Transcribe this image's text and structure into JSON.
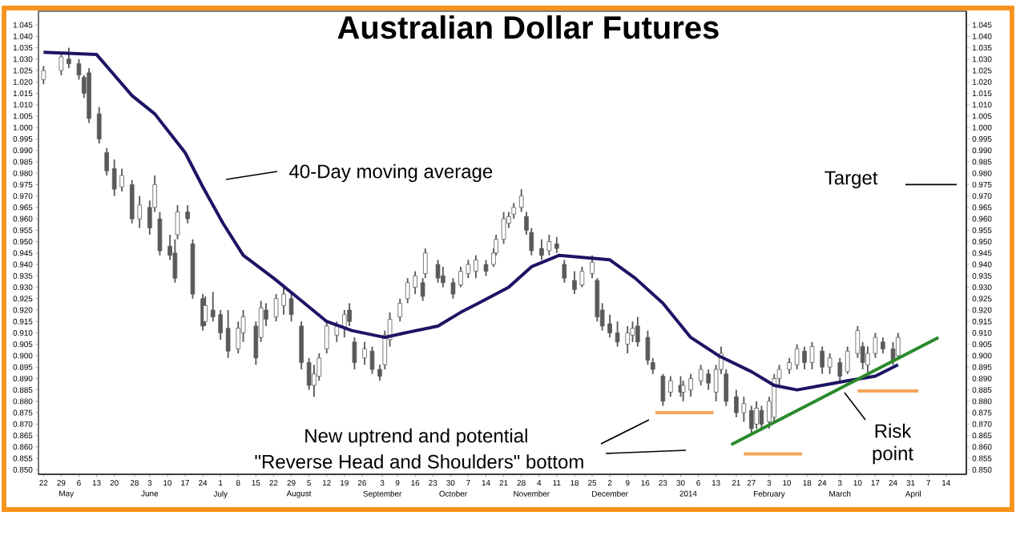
{
  "chart_data": {
    "type": "candlestick",
    "title": "Australian Dollar Futures",
    "color": "#5a5a5a",
    "x": [
      "2013-04-22",
      "2013-04-29",
      "2013-05-02",
      "2013-05-06",
      "2013-05-08",
      "2013-05-10",
      "2013-05-14",
      "2013-05-17",
      "2013-05-20",
      "2013-05-23",
      "2013-05-27",
      "2013-05-30",
      "2013-06-03",
      "2013-06-05",
      "2013-06-07",
      "2013-06-11",
      "2013-06-13",
      "2013-06-14",
      "2013-06-18",
      "2013-06-20",
      "2013-06-24",
      "2013-06-25",
      "2013-06-28",
      "2013-07-01",
      "2013-07-04",
      "2013-07-08",
      "2013-07-10",
      "2013-07-15",
      "2013-07-17",
      "2013-07-19",
      "2013-07-23",
      "2013-07-26",
      "2013-07-29",
      "2013-08-02",
      "2013-08-05",
      "2013-08-07",
      "2013-08-09",
      "2013-08-12",
      "2013-08-16",
      "2013-08-19",
      "2013-08-21",
      "2013-08-23",
      "2013-08-27",
      "2013-08-30",
      "2013-09-02",
      "2013-09-04",
      "2013-09-06",
      "2013-09-10",
      "2013-09-13",
      "2013-09-16",
      "2013-09-19",
      "2013-09-20",
      "2013-09-25",
      "2013-09-27",
      "2013-10-01",
      "2013-10-04",
      "2013-10-07",
      "2013-10-10",
      "2013-10-14",
      "2013-10-17",
      "2013-10-18",
      "2013-10-21",
      "2013-10-23",
      "2013-10-25",
      "2013-10-28",
      "2013-10-30",
      "2013-11-01",
      "2013-11-05",
      "2013-11-08",
      "2013-11-11",
      "2013-11-14",
      "2013-11-18",
      "2013-11-21",
      "2013-11-25",
      "2013-11-27",
      "2013-11-29",
      "2013-12-02",
      "2013-12-05",
      "2013-12-09",
      "2013-12-11",
      "2013-12-13",
      "2013-12-17",
      "2013-12-19",
      "2013-12-23",
      "2013-12-26",
      "2013-12-30",
      "2013-12-31",
      "2014-01-03",
      "2014-01-07",
      "2014-01-10",
      "2014-01-13",
      "2014-01-15",
      "2014-01-17",
      "2014-01-21",
      "2014-01-24",
      "2014-01-27",
      "2014-01-29",
      "2014-01-31",
      "2014-02-03",
      "2014-02-05",
      "2014-02-07",
      "2014-02-11",
      "2014-02-14",
      "2014-02-17",
      "2014-02-20",
      "2014-02-24",
      "2014-02-27",
      "2014-03-03",
      "2014-03-06",
      "2014-03-10",
      "2014-03-12",
      "2014-03-14",
      "2014-03-17",
      "2014-03-20",
      "2014-03-24",
      "2014-03-26"
    ],
    "ohlc": [
      [
        1.021,
        1.027,
        1.019,
        1.025
      ],
      [
        1.025,
        1.033,
        1.023,
        1.031
      ],
      [
        1.03,
        1.035,
        1.026,
        1.028
      ],
      [
        1.028,
        1.03,
        1.021,
        1.023
      ],
      [
        1.022,
        1.023,
        1.013,
        1.015
      ],
      [
        1.024,
        1.026,
        1.002,
        1.004
      ],
      [
        1.006,
        1.009,
        0.993,
        0.995
      ],
      [
        0.989,
        0.991,
        0.979,
        0.981
      ],
      [
        0.982,
        0.986,
        0.97,
        0.973
      ],
      [
        0.974,
        0.982,
        0.972,
        0.979
      ],
      [
        0.975,
        0.977,
        0.958,
        0.96
      ],
      [
        0.96,
        0.97,
        0.956,
        0.966
      ],
      [
        0.965,
        0.968,
        0.953,
        0.956
      ],
      [
        0.965,
        0.979,
        0.963,
        0.975
      ],
      [
        0.96,
        0.963,
        0.944,
        0.946
      ],
      [
        0.948,
        0.953,
        0.942,
        0.944
      ],
      [
        0.945,
        0.951,
        0.932,
        0.934
      ],
      [
        0.953,
        0.966,
        0.951,
        0.963
      ],
      [
        0.963,
        0.966,
        0.958,
        0.96
      ],
      [
        0.949,
        0.951,
        0.925,
        0.927
      ],
      [
        0.925,
        0.927,
        0.911,
        0.913
      ],
      [
        0.915,
        0.926,
        0.913,
        0.922
      ],
      [
        0.92,
        0.928,
        0.915,
        0.917
      ],
      [
        0.918,
        0.92,
        0.907,
        0.91
      ],
      [
        0.912,
        0.92,
        0.899,
        0.902
      ],
      [
        0.903,
        0.915,
        0.901,
        0.912
      ],
      [
        0.91,
        0.92,
        0.906,
        0.917
      ],
      [
        0.913,
        0.915,
        0.896,
        0.899
      ],
      [
        0.908,
        0.924,
        0.906,
        0.921
      ],
      [
        0.92,
        0.923,
        0.913,
        0.916
      ],
      [
        0.917,
        0.927,
        0.915,
        0.925
      ],
      [
        0.922,
        0.93,
        0.918,
        0.927
      ],
      [
        0.925,
        0.927,
        0.915,
        0.918
      ],
      [
        0.913,
        0.915,
        0.894,
        0.897
      ],
      [
        0.897,
        0.899,
        0.885,
        0.887
      ],
      [
        0.887,
        0.896,
        0.882,
        0.892
      ],
      [
        0.891,
        0.901,
        0.889,
        0.899
      ],
      [
        0.903,
        0.915,
        0.901,
        0.913
      ],
      [
        0.909,
        0.915,
        0.906,
        0.913
      ],
      [
        0.912,
        0.92,
        0.908,
        0.918
      ],
      [
        0.92,
        0.923,
        0.913,
        0.915
      ],
      [
        0.906,
        0.908,
        0.894,
        0.897
      ],
      [
        0.899,
        0.906,
        0.896,
        0.903
      ],
      [
        0.902,
        0.904,
        0.892,
        0.894
      ],
      [
        0.894,
        0.896,
        0.889,
        0.891
      ],
      [
        0.896,
        0.911,
        0.894,
        0.909
      ],
      [
        0.907,
        0.919,
        0.904,
        0.916
      ],
      [
        0.917,
        0.925,
        0.915,
        0.923
      ],
      [
        0.925,
        0.934,
        0.923,
        0.932
      ],
      [
        0.93,
        0.937,
        0.927,
        0.935
      ],
      [
        0.932,
        0.934,
        0.924,
        0.926
      ],
      [
        0.936,
        0.947,
        0.934,
        0.945
      ],
      [
        0.94,
        0.942,
        0.932,
        0.934
      ],
      [
        0.935,
        0.939,
        0.93,
        0.932
      ],
      [
        0.932,
        0.934,
        0.925,
        0.927
      ],
      [
        0.931,
        0.939,
        0.93,
        0.937
      ],
      [
        0.936,
        0.942,
        0.934,
        0.94
      ],
      [
        0.937,
        0.944,
        0.934,
        0.942
      ],
      [
        0.94,
        0.942,
        0.935,
        0.937
      ],
      [
        0.94,
        0.947,
        0.939,
        0.945
      ],
      [
        0.945,
        0.953,
        0.944,
        0.951
      ],
      [
        0.951,
        0.963,
        0.949,
        0.96
      ],
      [
        0.958,
        0.963,
        0.956,
        0.961
      ],
      [
        0.962,
        0.967,
        0.96,
        0.965
      ],
      [
        0.965,
        0.973,
        0.963,
        0.97
      ],
      [
        0.961,
        0.963,
        0.953,
        0.955
      ],
      [
        0.954,
        0.956,
        0.944,
        0.946
      ],
      [
        0.947,
        0.951,
        0.942,
        0.944
      ],
      [
        0.946,
        0.953,
        0.944,
        0.95
      ],
      [
        0.949,
        0.952,
        0.945,
        0.947
      ],
      [
        0.94,
        0.942,
        0.932,
        0.934
      ],
      [
        0.933,
        0.937,
        0.927,
        0.929
      ],
      [
        0.931,
        0.939,
        0.93,
        0.937
      ],
      [
        0.936,
        0.944,
        0.934,
        0.941
      ],
      [
        0.933,
        0.934,
        0.915,
        0.917
      ],
      [
        0.92,
        0.923,
        0.911,
        0.913
      ],
      [
        0.914,
        0.918,
        0.908,
        0.91
      ],
      [
        0.91,
        0.915,
        0.904,
        0.906
      ],
      [
        0.905,
        0.913,
        0.901,
        0.91
      ],
      [
        0.909,
        0.915,
        0.906,
        0.912
      ],
      [
        0.913,
        0.917,
        0.904,
        0.906
      ],
      [
        0.908,
        0.911,
        0.896,
        0.898
      ],
      [
        0.897,
        0.899,
        0.892,
        0.894
      ],
      [
        0.891,
        0.892,
        0.878,
        0.88
      ],
      [
        0.884,
        0.891,
        0.882,
        0.889
      ],
      [
        0.887,
        0.891,
        0.882,
        0.884
      ],
      [
        0.884,
        0.889,
        0.88,
        0.887
      ],
      [
        0.885,
        0.892,
        0.882,
        0.89
      ],
      [
        0.889,
        0.896,
        0.887,
        0.894
      ],
      [
        0.892,
        0.894,
        0.885,
        0.888
      ],
      [
        0.884,
        0.896,
        0.88,
        0.894
      ],
      [
        0.894,
        0.904,
        0.892,
        0.901
      ],
      [
        0.892,
        0.894,
        0.878,
        0.88
      ],
      [
        0.882,
        0.885,
        0.873,
        0.875
      ],
      [
        0.875,
        0.882,
        0.871,
        0.879
      ],
      [
        0.876,
        0.878,
        0.866,
        0.868
      ],
      [
        0.87,
        0.88,
        0.868,
        0.877
      ],
      [
        0.876,
        0.878,
        0.868,
        0.87
      ],
      [
        0.871,
        0.882,
        0.868,
        0.88
      ],
      [
        0.873,
        0.892,
        0.871,
        0.89
      ],
      [
        0.89,
        0.896,
        0.887,
        0.894
      ],
      [
        0.894,
        0.899,
        0.892,
        0.897
      ],
      [
        0.896,
        0.905,
        0.894,
        0.903
      ],
      [
        0.902,
        0.904,
        0.894,
        0.897
      ],
      [
        0.897,
        0.906,
        0.894,
        0.904
      ],
      [
        0.902,
        0.904,
        0.892,
        0.895
      ],
      [
        0.895,
        0.901,
        0.892,
        0.899
      ],
      [
        0.897,
        0.899,
        0.889,
        0.891
      ],
      [
        0.893,
        0.904,
        0.892,
        0.902
      ],
      [
        0.901,
        0.913,
        0.899,
        0.911
      ],
      [
        0.904,
        0.906,
        0.894,
        0.897
      ],
      [
        0.896,
        0.904,
        0.892,
        0.901
      ],
      [
        0.901,
        0.91,
        0.899,
        0.908
      ],
      [
        0.906,
        0.908,
        0.901,
        0.903
      ],
      [
        0.903,
        0.906,
        0.896,
        0.898
      ],
      [
        0.9,
        0.91,
        0.899,
        0.908
      ]
    ],
    "series": [
      {
        "type": "line",
        "color": "#1c1464",
        "x": [
          "2013-04-22",
          "2013-05-13",
          "2013-05-20",
          "2013-05-27",
          "2013-06-05",
          "2013-06-17",
          "2013-06-24",
          "2013-07-02",
          "2013-07-10",
          "2013-07-22",
          "2013-08-01",
          "2013-08-12",
          "2013-08-22",
          "2013-09-04",
          "2013-09-12",
          "2013-09-25",
          "2013-10-04",
          "2013-10-11",
          "2013-10-23",
          "2013-11-01",
          "2013-11-12",
          "2013-11-22",
          "2013-12-02",
          "2013-12-12",
          "2013-12-23",
          "2014-01-03",
          "2014-01-14",
          "2014-01-27",
          "2014-02-05",
          "2014-02-14",
          "2014-02-24",
          "2014-03-06",
          "2014-03-17",
          "2014-03-26"
        ],
        "values": [
          1.033,
          1.032,
          1.023,
          1.014,
          1.006,
          0.989,
          0.974,
          0.958,
          0.944,
          0.934,
          0.925,
          0.915,
          0.911,
          0.908,
          0.91,
          0.913,
          0.919,
          0.923,
          0.93,
          0.939,
          0.944,
          0.943,
          0.942,
          0.934,
          0.923,
          0.908,
          0.9,
          0.893,
          0.887,
          0.885,
          0.887,
          0.889,
          0.891,
          0.896
        ]
      },
      {
        "type": "line",
        "color": "#2a8a2a",
        "x": [
          "2014-01-19",
          "2014-04-11"
        ],
        "values": [
          0.861,
          0.908
        ]
      },
      {
        "type": "line",
        "color": "#f5a55a",
        "x": [
          "2013-12-20",
          "2014-01-12"
        ],
        "values": [
          0.875,
          0.875
        ]
      },
      {
        "type": "line",
        "color": "#f5a55a",
        "x": [
          "2014-01-24",
          "2014-02-16"
        ],
        "values": [
          0.857,
          0.857
        ]
      },
      {
        "type": "line",
        "color": "#f5a55a",
        "x": [
          "2014-03-10",
          "2014-04-03"
        ],
        "values": [
          0.8845,
          0.8845
        ]
      }
    ],
    "annotations": [
      "40-Day moving average",
      "New uptrend and potential",
      "\"Reverse Head and Shoulders\" bottom",
      "Risk point"
    ],
    "ref_lines": [
      {
        "axis": "y",
        "value": 0.975,
        "label": "Target",
        "color": "#000000"
      }
    ],
    "xlim": [
      "2013-04-20",
      "2014-04-22"
    ],
    "xticks": [
      {
        "value": "2013-04-22",
        "label": "22"
      },
      {
        "value": "2013-04-29",
        "label": "29"
      },
      {
        "value": "2013-05-06",
        "label": "6"
      },
      {
        "value": "2013-05-13",
        "label": "13"
      },
      {
        "value": "2013-05-20",
        "label": "20"
      },
      {
        "value": "2013-05-28",
        "label": "28"
      },
      {
        "value": "2013-06-03",
        "label": "3"
      },
      {
        "value": "2013-06-10",
        "label": "10"
      },
      {
        "value": "2013-06-17",
        "label": "17"
      },
      {
        "value": "2013-06-24",
        "label": "24"
      },
      {
        "value": "2013-07-01",
        "label": "1"
      },
      {
        "value": "2013-07-08",
        "label": "8"
      },
      {
        "value": "2013-07-15",
        "label": "15"
      },
      {
        "value": "2013-07-22",
        "label": "22"
      },
      {
        "value": "2013-07-29",
        "label": "29"
      },
      {
        "value": "2013-08-05",
        "label": "5"
      },
      {
        "value": "2013-08-12",
        "label": "12"
      },
      {
        "value": "2013-08-19",
        "label": "19"
      },
      {
        "value": "2013-08-26",
        "label": "26"
      },
      {
        "value": "2013-09-03",
        "label": "3"
      },
      {
        "value": "2013-09-09",
        "label": "9"
      },
      {
        "value": "2013-09-16",
        "label": "16"
      },
      {
        "value": "2013-09-23",
        "label": "23"
      },
      {
        "value": "2013-09-30",
        "label": "30"
      },
      {
        "value": "2013-10-07",
        "label": "7"
      },
      {
        "value": "2013-10-14",
        "label": "14"
      },
      {
        "value": "2013-10-21",
        "label": "21"
      },
      {
        "value": "2013-10-28",
        "label": "28"
      },
      {
        "value": "2013-11-04",
        "label": "4"
      },
      {
        "value": "2013-11-11",
        "label": "11"
      },
      {
        "value": "2013-11-18",
        "label": "18"
      },
      {
        "value": "2013-11-25",
        "label": "25"
      },
      {
        "value": "2013-12-02",
        "label": "2"
      },
      {
        "value": "2013-12-09",
        "label": "9"
      },
      {
        "value": "2013-12-16",
        "label": "16"
      },
      {
        "value": "2013-12-23",
        "label": "23"
      },
      {
        "value": "2013-12-30",
        "label": "30"
      },
      {
        "value": "2014-01-06",
        "label": "6"
      },
      {
        "value": "2014-01-13",
        "label": "13"
      },
      {
        "value": "2014-01-21",
        "label": "21"
      },
      {
        "value": "2014-01-27",
        "label": "27"
      },
      {
        "value": "2014-02-03",
        "label": "3"
      },
      {
        "value": "2014-02-10",
        "label": "10"
      },
      {
        "value": "2014-02-18",
        "label": "18"
      },
      {
        "value": "2014-02-24",
        "label": "24"
      },
      {
        "value": "2014-03-03",
        "label": "3"
      },
      {
        "value": "2014-03-10",
        "label": "10"
      },
      {
        "value": "2014-03-17",
        "label": "17"
      },
      {
        "value": "2014-03-24",
        "label": "24"
      },
      {
        "value": "2014-03-31",
        "label": "31"
      },
      {
        "value": "2014-04-07",
        "label": "7"
      },
      {
        "value": "2014-04-14",
        "label": "14"
      }
    ],
    "x2lim": [
      "2013-04-20",
      "2014-04-22"
    ],
    "x2ticks": [
      {
        "value": "2013-05-01",
        "label": "May"
      },
      {
        "value": "2013-06-03",
        "label": "June"
      },
      {
        "value": "2013-07-01",
        "label": "July"
      },
      {
        "value": "2013-08-01",
        "label": "August"
      },
      {
        "value": "2013-09-03",
        "label": "September"
      },
      {
        "value": "2013-10-01",
        "label": "October"
      },
      {
        "value": "2013-11-01",
        "label": "November"
      },
      {
        "value": "2013-12-02",
        "label": "December"
      },
      {
        "value": "2014-01-02",
        "label": "2014"
      },
      {
        "value": "2014-02-03",
        "label": "February"
      },
      {
        "value": "2014-03-03",
        "label": "March"
      },
      {
        "value": "2014-04-01",
        "label": "April"
      }
    ],
    "ylim": [
      0.848,
      1.051
    ],
    "yticks": [
      {
        "value": 0.85,
        "label": "0.850"
      },
      {
        "value": 0.855,
        "label": "0.855"
      },
      {
        "value": 0.86,
        "label": "0.860"
      },
      {
        "value": 0.865,
        "label": "0.865"
      },
      {
        "value": 0.87,
        "label": "0.870"
      },
      {
        "value": 0.875,
        "label": "0.875"
      },
      {
        "value": 0.88,
        "label": "0.880"
      },
      {
        "value": 0.885,
        "label": "0.885"
      },
      {
        "value": 0.89,
        "label": "0.890"
      },
      {
        "value": 0.895,
        "label": "0.895"
      },
      {
        "value": 0.9,
        "label": "0.900"
      },
      {
        "value": 0.905,
        "label": "0.905"
      },
      {
        "value": 0.91,
        "label": "0.910"
      },
      {
        "value": 0.915,
        "label": "0.915"
      },
      {
        "value": 0.92,
        "label": "0.920"
      },
      {
        "value": 0.925,
        "label": "0.925"
      },
      {
        "value": 0.93,
        "label": "0.930"
      },
      {
        "value": 0.935,
        "label": "0.935"
      },
      {
        "value": 0.94,
        "label": "0.940"
      },
      {
        "value": 0.945,
        "label": "0.945"
      },
      {
        "value": 0.95,
        "label": "0.950"
      },
      {
        "value": 0.955,
        "label": "0.955"
      },
      {
        "value": 0.96,
        "label": "0.960"
      },
      {
        "value": 0.965,
        "label": "0.965"
      },
      {
        "value": 0.97,
        "label": "0.970"
      },
      {
        "value": 0.975,
        "label": "0.975"
      },
      {
        "value": 0.98,
        "label": "0.980"
      },
      {
        "value": 0.985,
        "label": "0.985"
      },
      {
        "value": 0.99,
        "label": "0.990"
      },
      {
        "value": 0.995,
        "label": "0.995"
      },
      {
        "value": 1.0,
        "label": "1.000"
      },
      {
        "value": 1.005,
        "label": "1.005"
      },
      {
        "value": 1.01,
        "label": "1.010"
      },
      {
        "value": 1.015,
        "label": "1.015"
      },
      {
        "value": 1.02,
        "label": "1.020"
      },
      {
        "value": 1.025,
        "label": "1.025"
      },
      {
        "value": 1.03,
        "label": "1.030"
      },
      {
        "value": 1.035,
        "label": "1.035"
      },
      {
        "value": 1.04,
        "label": "1.040"
      },
      {
        "value": 1.045,
        "label": "1.045"
      }
    ],
    "y2lim": [
      0.848,
      1.051
    ],
    "y2ticks": [
      {
        "value": 0.85,
        "label": "0.850"
      },
      {
        "value": 0.855,
        "label": "0.855"
      },
      {
        "value": 0.86,
        "label": "0.860"
      },
      {
        "value": 0.865,
        "label": "0.865"
      },
      {
        "value": 0.87,
        "label": "0.870"
      },
      {
        "value": 0.875,
        "label": "0.875"
      },
      {
        "value": 0.88,
        "label": "0.880"
      },
      {
        "value": 0.885,
        "label": "0.885"
      },
      {
        "value": 0.89,
        "label": "0.890"
      },
      {
        "value": 0.895,
        "label": "0.895"
      },
      {
        "value": 0.9,
        "label": "0.900"
      },
      {
        "value": 0.905,
        "label": "0.905"
      },
      {
        "value": 0.91,
        "label": "0.910"
      },
      {
        "value": 0.915,
        "label": "0.915"
      },
      {
        "value": 0.92,
        "label": "0.920"
      },
      {
        "value": 0.925,
        "label": "0.925"
      },
      {
        "value": 0.93,
        "label": "0.930"
      },
      {
        "value": 0.935,
        "label": "0.935"
      },
      {
        "value": 0.94,
        "label": "0.940"
      },
      {
        "value": 0.945,
        "label": "0.945"
      },
      {
        "value": 0.95,
        "label": "0.950"
      },
      {
        "value": 0.955,
        "label": "0.955"
      },
      {
        "value": 0.96,
        "label": "0.960"
      },
      {
        "value": 0.965,
        "label": "0.965"
      },
      {
        "value": 0.97,
        "label": "0.970"
      },
      {
        "value": 0.975,
        "label": "0.975"
      },
      {
        "value": 0.98,
        "label": "0.980"
      },
      {
        "value": 0.985,
        "label": "0.985"
      },
      {
        "value": 0.99,
        "label": "0.990"
      },
      {
        "value": 0.995,
        "label": "0.995"
      },
      {
        "value": 1.0,
        "label": "1.000"
      },
      {
        "value": 1.005,
        "label": "1.005"
      },
      {
        "value": 1.01,
        "label": "1.010"
      },
      {
        "value": 1.015,
        "label": "1.015"
      },
      {
        "value": 1.02,
        "label": "1.020"
      },
      {
        "value": 1.025,
        "label": "1.025"
      },
      {
        "value": 1.03,
        "label": "1.030"
      },
      {
        "value": 1.035,
        "label": "1.035"
      },
      {
        "value": 1.04,
        "label": "1.040"
      },
      {
        "value": 1.045,
        "label": "1.045"
      }
    ]
  }
}
